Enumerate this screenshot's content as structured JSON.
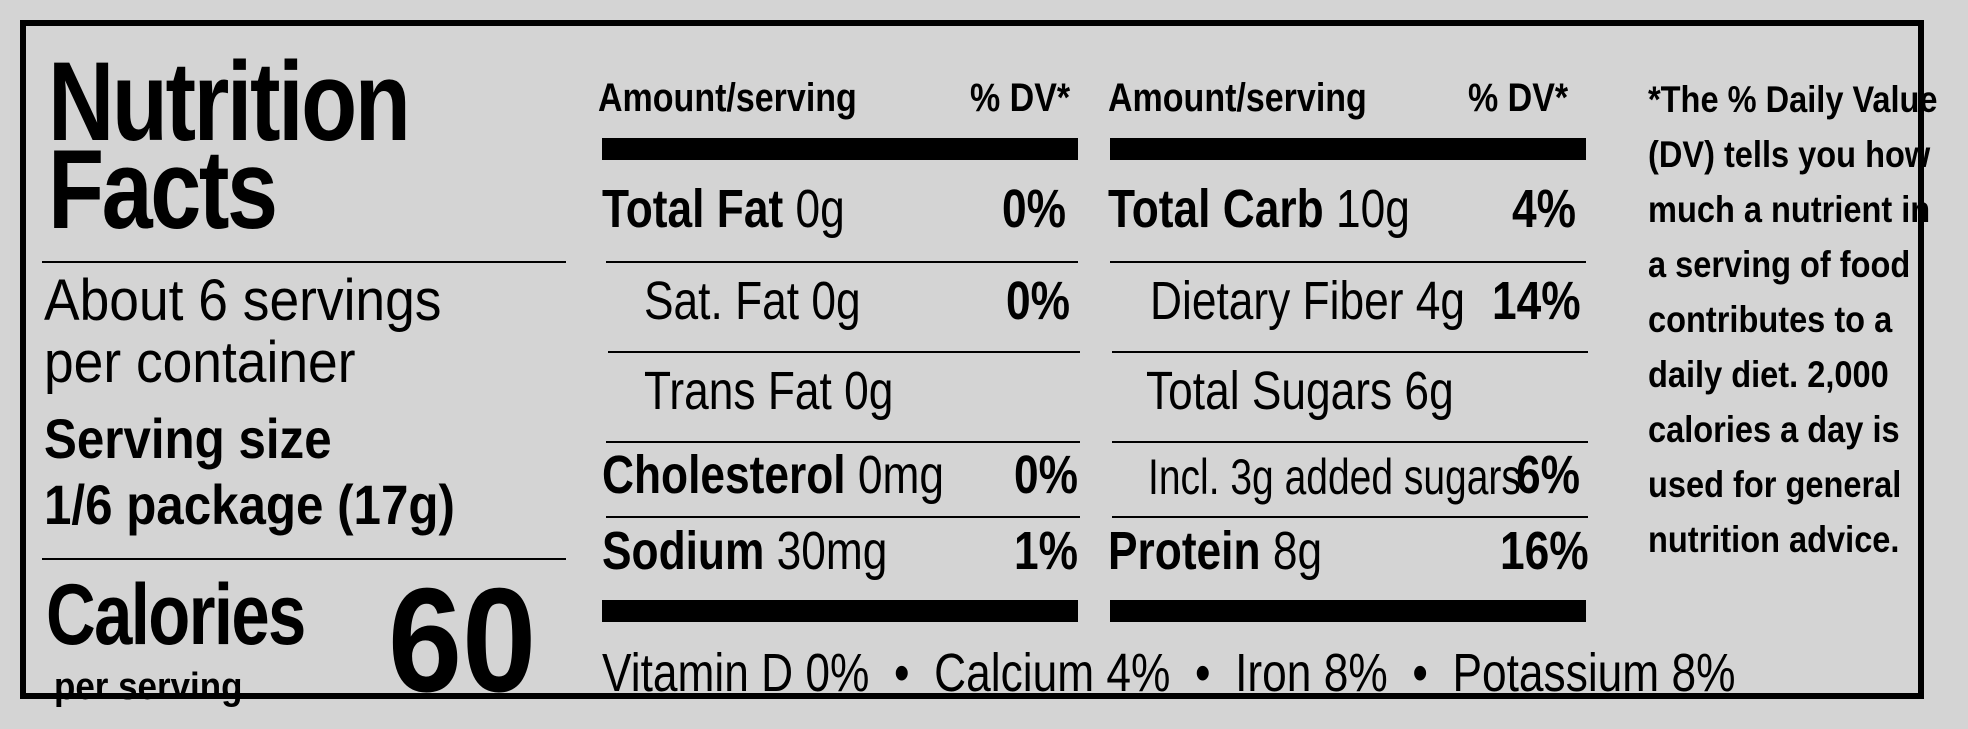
{
  "panel": {
    "title_line1": "Nutrition",
    "title_line2": "Facts",
    "servings_line1": "About 6 servings",
    "servings_line2": "per container",
    "serving_size_label": "Serving size",
    "serving_size_value": "1/6 package (17g)",
    "calories_label": "Calories",
    "calories_sub": "per serving",
    "calories_value": "60"
  },
  "headers": {
    "amount": "Amount/serving",
    "dv": "% DV*"
  },
  "left_rows": [
    {
      "name": "Total Fat",
      "amount": "0g",
      "dv": "0%"
    },
    {
      "name": "Sat. Fat",
      "amount": "0g",
      "dv": "0%"
    },
    {
      "name": "Trans Fat 0g",
      "amount": "",
      "dv": ""
    },
    {
      "name": "Cholesterol",
      "amount": "0mg",
      "dv": "0%"
    },
    {
      "name": "Sodium",
      "amount": "30mg",
      "dv": "1%"
    }
  ],
  "right_rows": [
    {
      "name": "Total Carb",
      "amount": "10g",
      "dv": "4%"
    },
    {
      "name": "Dietary Fiber 4g",
      "amount": "",
      "dv": "14%"
    },
    {
      "name": "Total Sugars 6g",
      "amount": "",
      "dv": ""
    },
    {
      "name": "Incl. 3g added sugars",
      "amount": "",
      "dv": "6%"
    },
    {
      "name": "Protein",
      "amount": "8g",
      "dv": "16%"
    }
  ],
  "vitamins": [
    {
      "text": "Vitamin D 0%"
    },
    {
      "text": "Calcium 4%"
    },
    {
      "text": "Iron 8%"
    },
    {
      "text": "Potassium 8%"
    }
  ],
  "separator": "•",
  "footnote": "*The % Daily Value (DV) tells you how much a nutrient in a serving of food contributes to a daily diet. 2,000 calories a day is used for general nutrition advice."
}
